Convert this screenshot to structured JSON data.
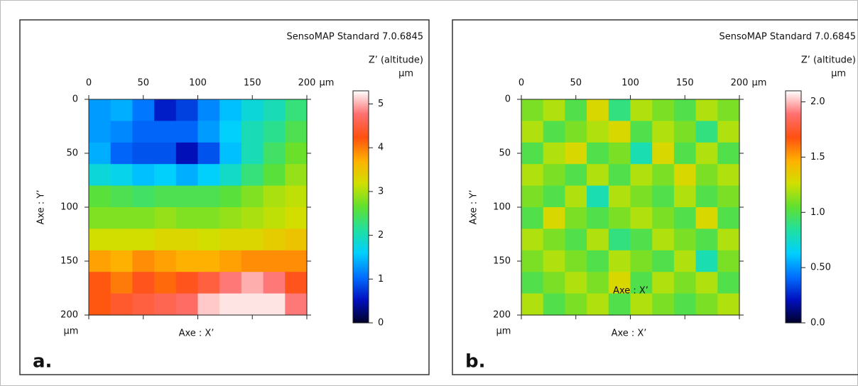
{
  "chart_data": [
    {
      "type": "heatmap",
      "panel_label": "a.",
      "software": "SensoMAP Standard 7.0.6845",
      "colorbar_title": "Z’ (altitude)",
      "colorbar_unit": "µm",
      "x_unit": "µm",
      "y_unit": "µm",
      "x_label": "Axe : X’",
      "y_label": "Axe : Y’",
      "x": [
        10,
        30,
        50,
        70,
        90,
        110,
        130,
        150,
        170,
        190
      ],
      "y": [
        10,
        30,
        50,
        70,
        90,
        110,
        130,
        150,
        170,
        190
      ],
      "z": [
        [
          1.3,
          1.4,
          1.1,
          0.6,
          0.8,
          1.2,
          1.5,
          1.8,
          2.0,
          2.3
        ],
        [
          1.3,
          1.2,
          1.0,
          1.0,
          1.0,
          1.3,
          1.6,
          2.0,
          2.2,
          2.5
        ],
        [
          1.4,
          1.0,
          0.9,
          0.9,
          0.5,
          0.9,
          1.5,
          2.0,
          2.4,
          2.7
        ],
        [
          1.8,
          1.7,
          1.5,
          1.6,
          1.4,
          1.6,
          1.9,
          2.3,
          2.6,
          2.9
        ],
        [
          2.6,
          2.5,
          2.4,
          2.5,
          2.5,
          2.5,
          2.6,
          2.8,
          3.0,
          3.1
        ],
        [
          2.8,
          2.8,
          2.8,
          2.9,
          2.8,
          2.8,
          2.9,
          3.0,
          3.1,
          3.2
        ],
        [
          3.2,
          3.2,
          3.2,
          3.3,
          3.3,
          3.2,
          3.3,
          3.3,
          3.4,
          3.5
        ],
        [
          3.8,
          3.7,
          3.9,
          3.8,
          3.7,
          3.7,
          3.8,
          3.9,
          3.9,
          3.9
        ],
        [
          4.2,
          4.0,
          4.3,
          4.1,
          4.3,
          4.5,
          4.8,
          5.0,
          4.8,
          4.3
        ],
        [
          4.2,
          4.4,
          4.5,
          4.6,
          4.7,
          5.1,
          5.2,
          5.2,
          5.2,
          4.8
        ]
      ],
      "xlim": [
        0,
        200
      ],
      "xticks": [
        0,
        50,
        100,
        150,
        200
      ],
      "ylim": [
        0,
        200
      ],
      "yticks": [
        0,
        50,
        100,
        150,
        200
      ],
      "y_inverted": true,
      "zlim": [
        0,
        5.3
      ],
      "zticks": [
        0,
        1,
        2,
        3,
        4,
        5
      ],
      "colormap": [
        "#00002a",
        "#0010c0",
        "#0070ff",
        "#00d0ff",
        "#20e0a0",
        "#60e030",
        "#d0e000",
        "#ffb000",
        "#ff5010",
        "#ff7070",
        "#ffffff"
      ]
    },
    {
      "type": "heatmap",
      "panel_label": "b.",
      "software": "SensoMAP Standard 7.0.6845",
      "colorbar_title": "Z’ (altitude)",
      "colorbar_unit": "µm",
      "x_unit": "µm",
      "y_unit": "µm",
      "x_label": "Axe : X’",
      "y_label": "Axe : Y’",
      "annotation": "Axe : X’",
      "x": [
        10,
        30,
        50,
        70,
        90,
        110,
        130,
        150,
        170,
        190
      ],
      "y": [
        10,
        30,
        50,
        70,
        90,
        110,
        130,
        150,
        170,
        190
      ],
      "z": [
        [
          1.1,
          1.2,
          1.0,
          1.3,
          0.9,
          1.2,
          1.1,
          1.0,
          1.2,
          1.1
        ],
        [
          1.2,
          1.0,
          1.1,
          1.2,
          1.3,
          1.0,
          1.2,
          1.1,
          0.9,
          1.2
        ],
        [
          1.0,
          1.2,
          1.3,
          1.0,
          1.1,
          0.8,
          1.3,
          1.0,
          1.2,
          1.0
        ],
        [
          1.2,
          1.1,
          1.0,
          1.2,
          1.0,
          1.2,
          1.1,
          1.3,
          1.1,
          1.2
        ],
        [
          1.1,
          1.0,
          1.2,
          0.8,
          1.2,
          1.1,
          1.0,
          1.2,
          1.0,
          1.1
        ],
        [
          1.0,
          1.3,
          1.1,
          1.0,
          1.1,
          1.2,
          1.1,
          1.0,
          1.3,
          1.0
        ],
        [
          1.2,
          1.1,
          1.0,
          1.2,
          0.9,
          1.0,
          1.2,
          1.1,
          1.0,
          1.2
        ],
        [
          1.1,
          1.2,
          1.1,
          1.0,
          1.2,
          1.1,
          1.0,
          1.2,
          0.8,
          1.1
        ],
        [
          1.0,
          1.1,
          1.2,
          1.1,
          1.3,
          1.0,
          1.2,
          1.1,
          1.2,
          1.0
        ],
        [
          1.2,
          1.0,
          1.1,
          1.2,
          1.0,
          1.2,
          1.1,
          1.0,
          1.1,
          1.2
        ]
      ],
      "xlim": [
        0,
        200
      ],
      "xticks": [
        0,
        50,
        100,
        150,
        200
      ],
      "ylim": [
        0,
        200
      ],
      "yticks": [
        0,
        50,
        100,
        150,
        200
      ],
      "y_inverted": true,
      "zlim": [
        0,
        2.1
      ],
      "zticks": [
        {
          "value": 0,
          "label": "0.0"
        },
        {
          "value": 0.5,
          "label": "0.50"
        },
        {
          "value": 1,
          "label": "1.0"
        },
        1.5,
        {
          "value": 2,
          "label": "2.0"
        }
      ],
      "colormap": [
        "#00002a",
        "#0010c0",
        "#0070ff",
        "#00d0ff",
        "#20e0a0",
        "#60e030",
        "#d0e000",
        "#ffb000",
        "#ff5010",
        "#ff7070",
        "#ffffff"
      ]
    }
  ]
}
